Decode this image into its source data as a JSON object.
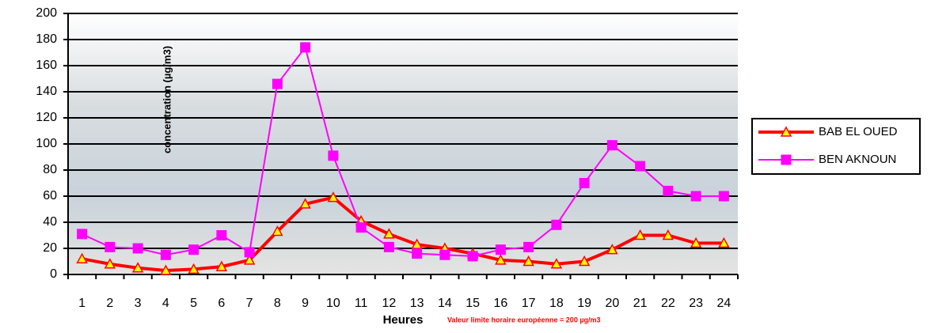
{
  "chart_data": {
    "type": "line",
    "y_label": "concentration (µg/m3)",
    "x_label": "Heures",
    "note": "Valeur limite horaire européenne  = 200 µg/m3",
    "categories": [
      "1",
      "2",
      "3",
      "4",
      "5",
      "6",
      "7",
      "8",
      "9",
      "10",
      "11",
      "12",
      "13",
      "14",
      "15",
      "16",
      "17",
      "18",
      "19",
      "20",
      "21",
      "22",
      "23",
      "24"
    ],
    "series": [
      {
        "name": "BAB EL OUED",
        "color": "#ff0000",
        "marker": "triangle",
        "marker_fill": "#ffff00",
        "values": [
          12,
          8,
          5,
          3,
          4,
          6,
          11,
          33,
          54,
          59,
          41,
          31,
          23,
          20,
          16,
          11,
          10,
          8,
          10,
          19,
          30,
          30,
          24,
          24
        ]
      },
      {
        "name": "BEN AKNOUN",
        "color": "#ff00ff",
        "marker": "square",
        "marker_fill": "#ff00ff",
        "values": [
          31,
          21,
          20,
          15,
          19,
          30,
          17,
          146,
          174,
          91,
          36,
          21,
          16,
          15,
          14,
          19,
          21,
          38,
          70,
          99,
          83,
          64,
          60,
          60
        ]
      }
    ],
    "ylim": [
      0,
      200
    ],
    "yticks": [
      0,
      20,
      40,
      60,
      80,
      100,
      120,
      140,
      160,
      180,
      200
    ],
    "grid": true
  }
}
